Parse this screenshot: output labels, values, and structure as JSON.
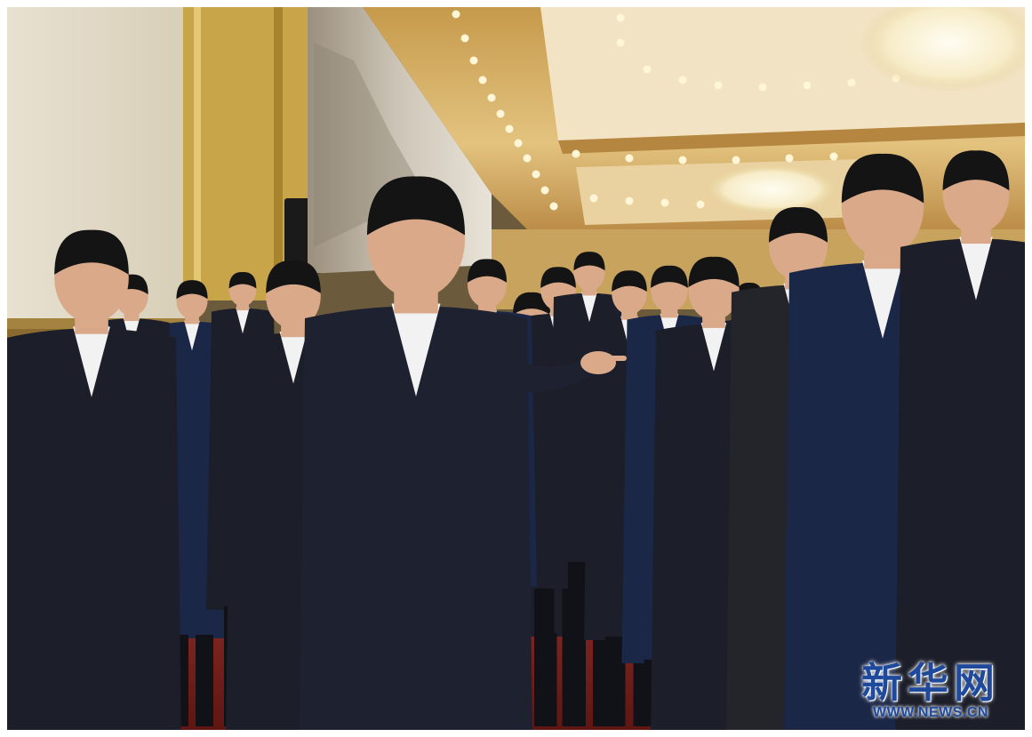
{
  "image": {
    "description_colors": {
      "wall": "#ece6d8",
      "gold_trim": "#c9a54a",
      "ceiling": "#d9b46a",
      "carpet": "#7a1e1e",
      "suit_dark": "#1c1f2a",
      "suit_navy": "#1b2747",
      "skin": "#d9a98a",
      "hair": "#141414",
      "shirt": "#f2f2f2",
      "light": "#fff6d8"
    }
  },
  "watermark": {
    "brand_cn": "新华网",
    "url": "WWW.NEWS.CN",
    "color": "#1f4a9c"
  }
}
